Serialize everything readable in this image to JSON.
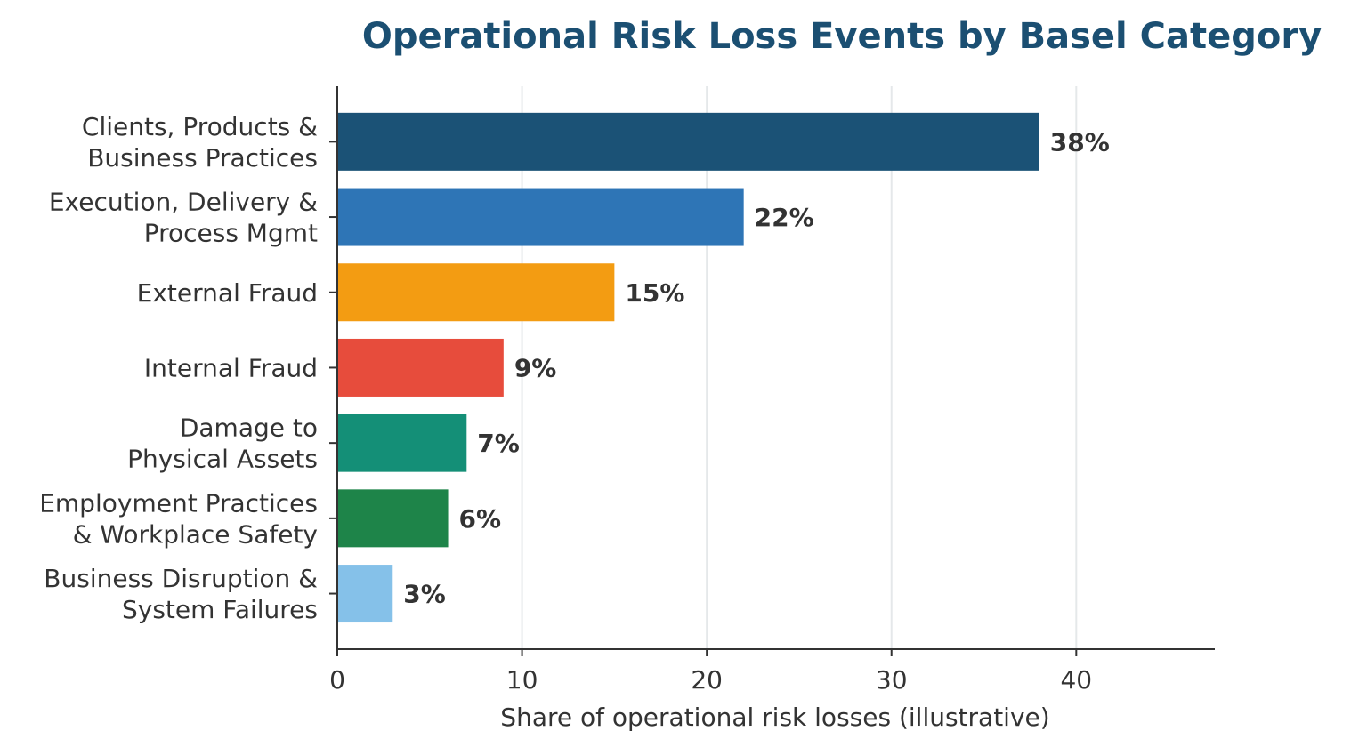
{
  "chart_data": {
    "type": "bar",
    "orientation": "horizontal",
    "title": "Operational Risk Loss Events by Basel Category",
    "xlabel": "Share of operational risk losses (illustrative)",
    "ylabel": "",
    "categories": [
      [
        "Clients, Products &",
        "Business Practices"
      ],
      [
        "Execution, Delivery &",
        "Process Mgmt"
      ],
      [
        "External Fraud"
      ],
      [
        "Internal Fraud"
      ],
      [
        "Damage to",
        "Physical Assets"
      ],
      [
        "Employment Practices",
        "& Workplace Safety"
      ],
      [
        "Business Disruption &",
        "System Failures"
      ]
    ],
    "values": [
      38,
      22,
      15,
      9,
      7,
      6,
      3
    ],
    "value_labels": [
      "38%",
      "22%",
      "15%",
      "9%",
      "7%",
      "6%",
      "3%"
    ],
    "bar_colors": [
      "#1b5276",
      "#2e75b6",
      "#f39c12",
      "#e74c3c",
      "#148f77",
      "#1e8449",
      "#85c1e9"
    ],
    "xlim": [
      0,
      47.5
    ],
    "xticks": [
      0,
      10,
      20,
      30,
      40
    ],
    "grid": "vertical",
    "legend": "none"
  },
  "colors": {
    "title": "#1b4f72",
    "text": "#333333",
    "axis": "#333333",
    "grid": "#e5e8ea",
    "background": "#ffffff"
  }
}
